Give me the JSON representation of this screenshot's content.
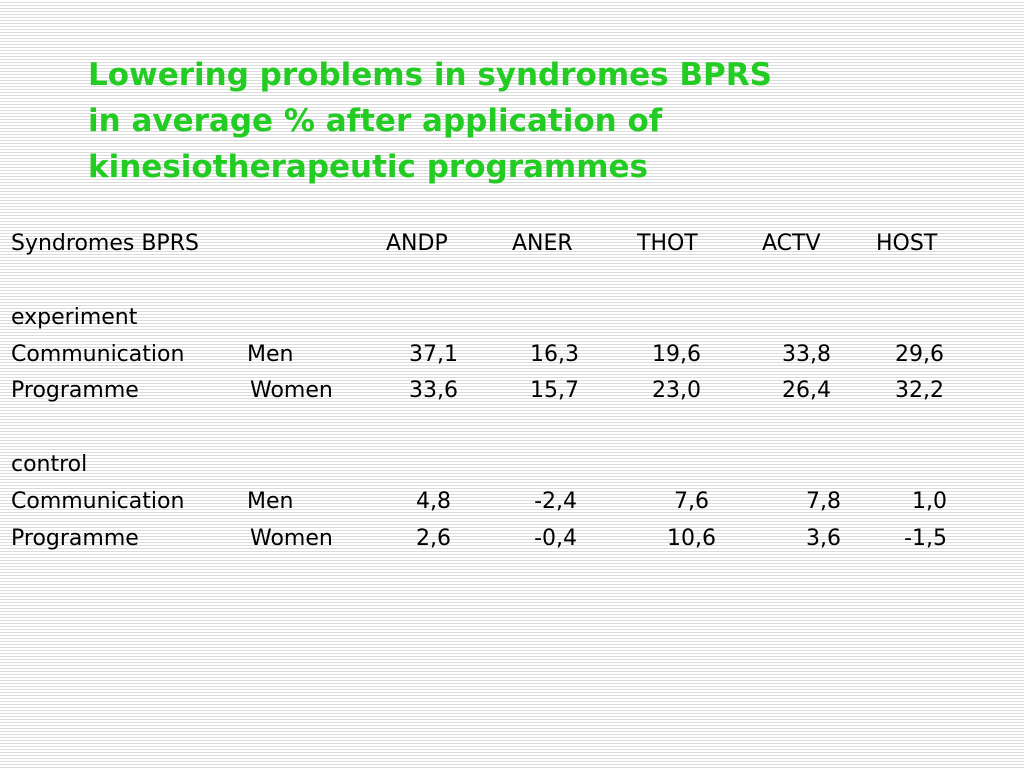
{
  "title_lines": [
    "Lowering problems in syndromes BPRS",
    "in average % after application of",
    "kinesiotherapeutic programmes"
  ],
  "header": {
    "label": "Syndromes BPRS",
    "columns": [
      "ANDP",
      "ANER",
      "THOT",
      "ACTV",
      "HOST"
    ]
  },
  "groups": [
    {
      "name": "experiment",
      "rows": [
        {
          "label": "Communication",
          "gender": "Men",
          "values": [
            "37,1",
            "16,3",
            "19,6",
            "33,8",
            "29,6"
          ]
        },
        {
          "label": "Programme",
          "gender": "Women",
          "values": [
            "33,6",
            "15,7",
            "23,0",
            "26,4",
            "32,2"
          ]
        }
      ]
    },
    {
      "name": "control",
      "rows": [
        {
          "label": "Communication",
          "gender": "Men",
          "values": [
            "4,8",
            "-2,4",
            "7,6",
            "7,8",
            "1,0"
          ]
        },
        {
          "label": "Programme",
          "gender": "Women",
          "values": [
            "2,6",
            "-0,4",
            "10,6",
            "3,6",
            "-1,5"
          ]
        }
      ]
    }
  ],
  "colors": {
    "title": "#22cc22",
    "text": "#000000"
  }
}
